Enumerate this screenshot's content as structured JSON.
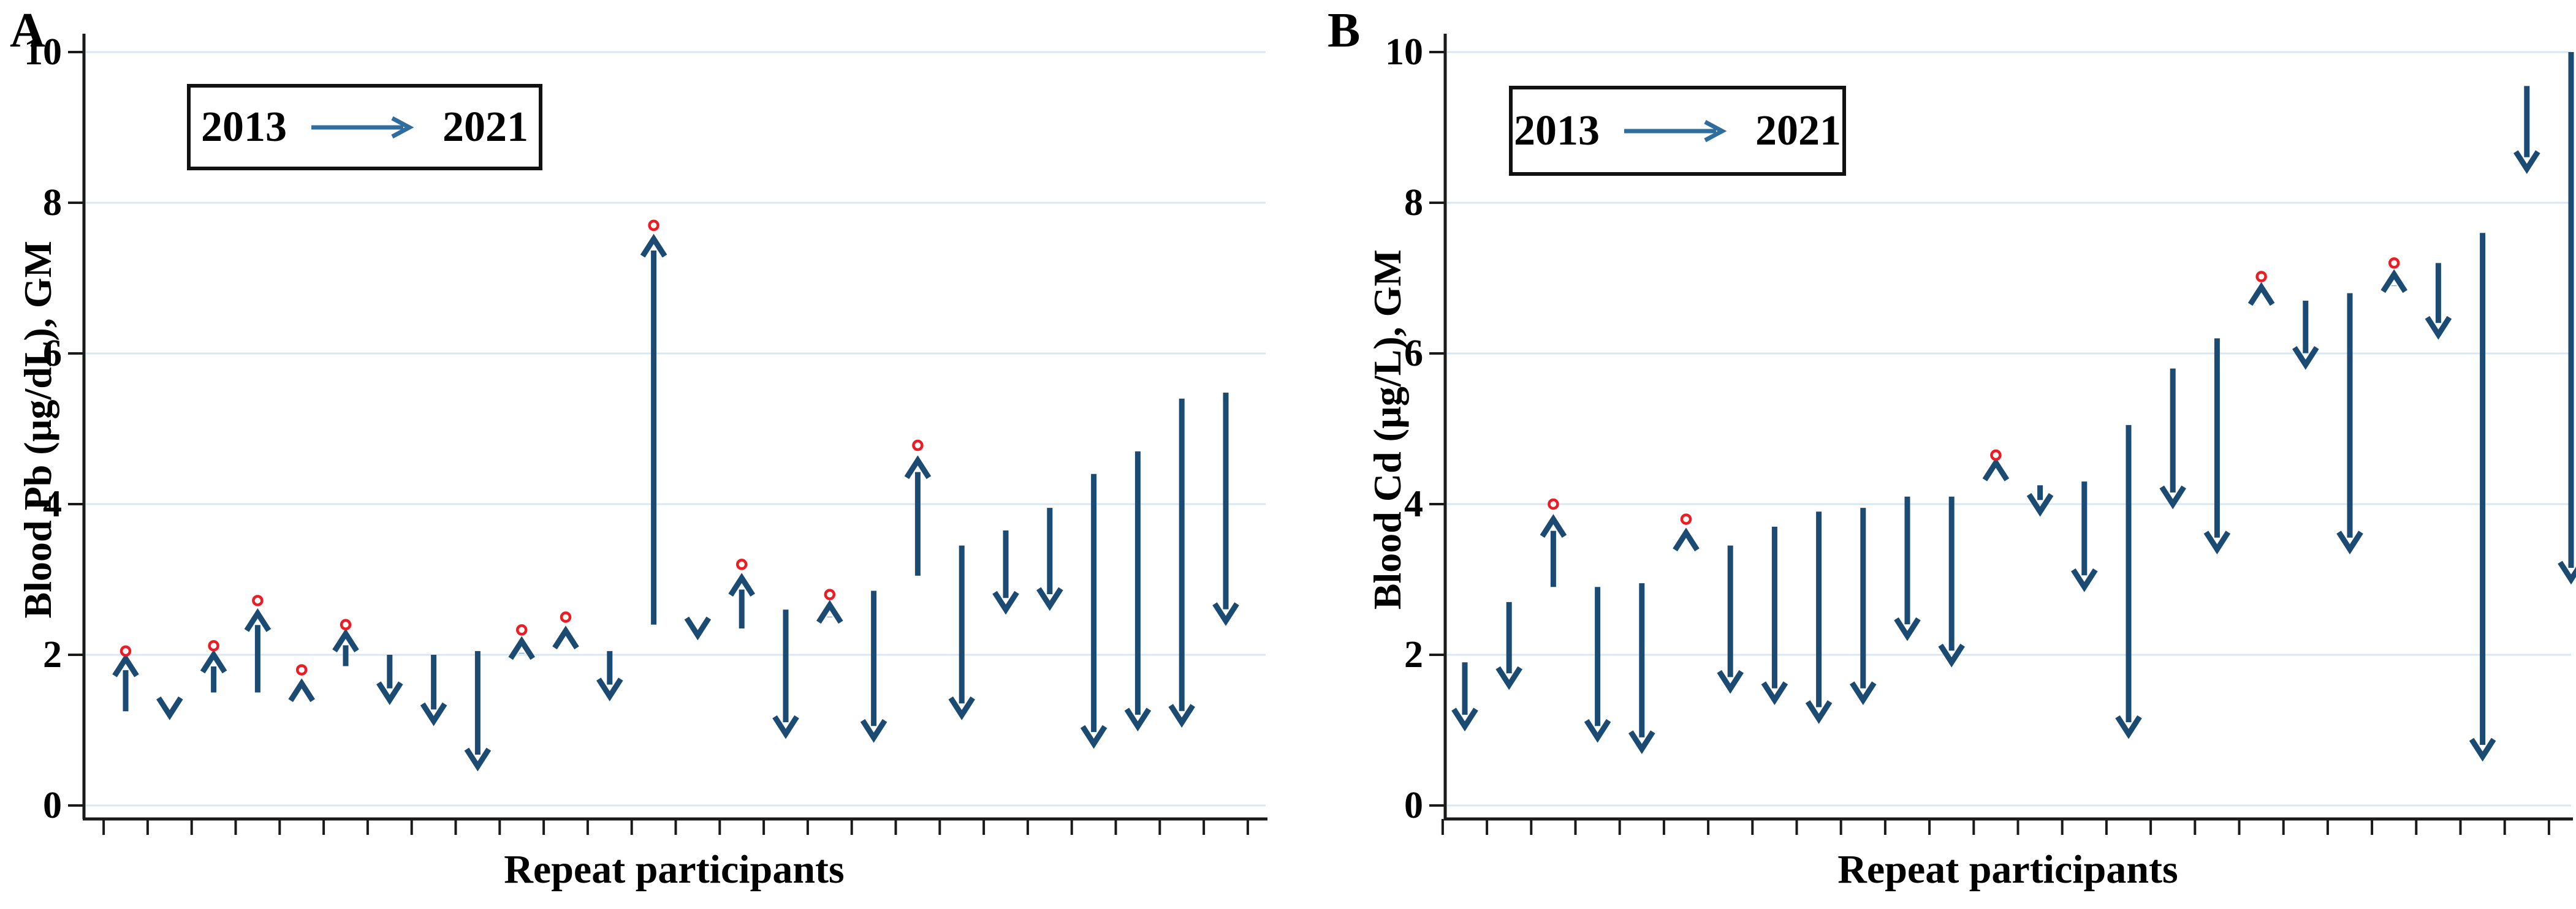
{
  "figure_kind": "paired-arrow change plot, two panels",
  "colors": {
    "arrow": "#1b4b72",
    "legend_arrow": "#2e6d9e",
    "circle_marker": "#ed1c24",
    "gridline": "#d8e8f2",
    "axis": "#1a1a1a",
    "text": "#000000"
  },
  "chart_data": [
    {
      "type": "arrow",
      "panel_label": "A",
      "ylabel": "Blood Pb (µg/dL), GM",
      "xlabel": "Repeat participants",
      "legend_start": "2013",
      "legend_end": "2021",
      "ylim": [
        0,
        10
      ],
      "y_ticks": [
        0,
        2,
        4,
        6,
        8,
        10
      ],
      "y_tick_labels": [
        "0",
        "2",
        "4",
        "6",
        "8",
        "10"
      ],
      "grid": "horizontal light-blue lines at y ticks",
      "n_participants": 26,
      "series": [
        {
          "name": "2013",
          "values": [
            1.25,
            1.4,
            1.5,
            1.5,
            1.45,
            1.85,
            2.0,
            2.0,
            2.05,
            2.02,
            2.05,
            2.05,
            2.4,
            2.45,
            2.35,
            2.6,
            2.5,
            2.85,
            3.05,
            3.45,
            3.65,
            3.95,
            4.4,
            4.7,
            5.4,
            5.48
          ]
        },
        {
          "name": "2021",
          "values": [
            1.95,
            1.2,
            2.0,
            2.55,
            1.62,
            2.28,
            1.4,
            1.12,
            0.52,
            2.18,
            2.32,
            1.45,
            7.52,
            2.26,
            3.02,
            0.95,
            2.66,
            0.9,
            4.58,
            1.2,
            2.6,
            2.65,
            0.82,
            1.05,
            1.1,
            2.45
          ]
        },
        {
          "name": "red_circle_above_increase",
          "values": [
            2.05,
            null,
            2.12,
            2.72,
            1.8,
            2.4,
            null,
            null,
            null,
            2.33,
            2.5,
            null,
            7.7,
            null,
            3.2,
            null,
            2.8,
            null,
            4.78,
            null,
            null,
            null,
            null,
            null,
            null,
            null
          ]
        }
      ]
    },
    {
      "type": "arrow",
      "panel_label": "B",
      "ylabel": "Blood Cd (µg/L), GM",
      "xlabel": "Repeat participants",
      "legend_start": "2013",
      "legend_end": "2021",
      "ylim": [
        0,
        10
      ],
      "y_ticks": [
        0,
        2,
        4,
        6,
        8,
        10
      ],
      "y_tick_labels": [
        "0",
        "2",
        "4",
        "6",
        "8",
        "10"
      ],
      "grid": "horizontal light-blue lines at y ticks",
      "n_participants": 26,
      "series": [
        {
          "name": "2013",
          "values": [
            1.9,
            2.7,
            2.9,
            2.9,
            2.95,
            3.4,
            3.45,
            3.7,
            3.9,
            3.95,
            4.1,
            4.1,
            4.28,
            4.25,
            4.3,
            5.05,
            5.8,
            6.2,
            6.6,
            6.7,
            6.8,
            6.9,
            7.2,
            7.6,
            9.55,
            10.0
          ]
        },
        {
          "name": "2021",
          "values": [
            1.05,
            1.6,
            3.8,
            0.9,
            0.75,
            3.62,
            1.55,
            1.4,
            1.15,
            1.4,
            2.25,
            1.9,
            4.55,
            3.9,
            2.9,
            0.95,
            4.0,
            3.4,
            6.88,
            5.85,
            3.4,
            7.05,
            6.25,
            0.65,
            8.45,
            3.0
          ]
        },
        {
          "name": "red_circle_above_increase",
          "values": [
            null,
            null,
            4.0,
            null,
            null,
            3.8,
            null,
            null,
            null,
            null,
            null,
            null,
            4.65,
            null,
            null,
            null,
            null,
            null,
            7.02,
            null,
            null,
            7.2,
            null,
            null,
            null,
            null
          ]
        }
      ]
    }
  ]
}
